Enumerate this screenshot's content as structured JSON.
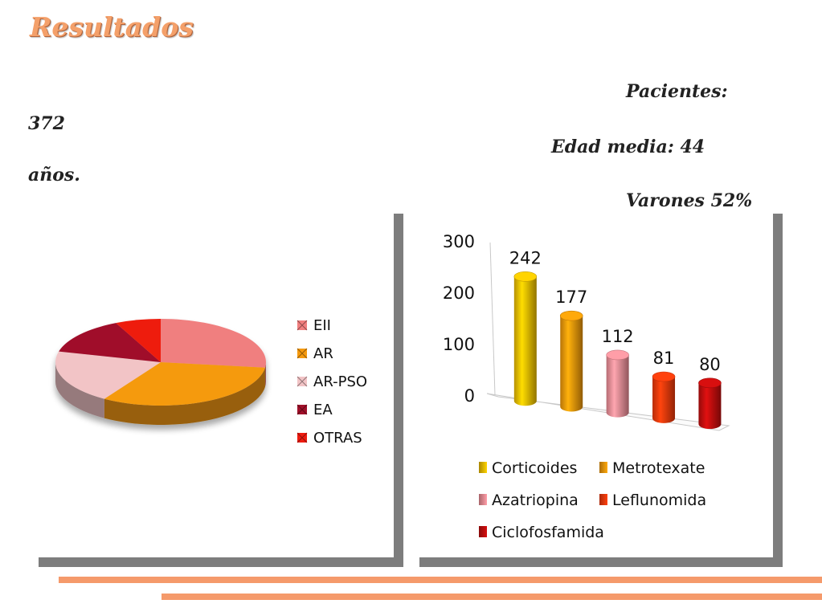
{
  "slide": {
    "title": "Resultados",
    "stats": {
      "pacientes_label": "Pacientes:",
      "pacientes_value": "372",
      "edad_label": "Edad media: 44",
      "edad_unit": "años.",
      "varones": "Varones 52%"
    }
  },
  "chart_data": [
    {
      "type": "pie",
      "title": "",
      "legend_position": "right",
      "categories": [
        "EII",
        "AR",
        "AR-PSO",
        "EA",
        "OTRAS"
      ],
      "values": [
        27,
        32,
        20,
        14,
        7
      ],
      "colors": [
        "#f07f7f",
        "#f59a0f",
        "#f2c4c6",
        "#a0102a",
        "#ee1c10"
      ]
    },
    {
      "type": "bar",
      "title": "",
      "three_d": true,
      "shape": "cylinder",
      "legend_position": "bottom",
      "categories": [
        "Corticoides",
        "Metrotexate",
        "Azatriopina",
        "Leflunomida",
        "Ciclofosfamida"
      ],
      "values": [
        242,
        177,
        112,
        81,
        80
      ],
      "ylim": [
        0,
        300
      ],
      "yticks": [
        0,
        100,
        200,
        300
      ],
      "grid": false,
      "colors": [
        "#f3c100",
        "#f49a0a",
        "#f29099",
        "#f53b0c",
        "#c40e0e"
      ]
    }
  ]
}
